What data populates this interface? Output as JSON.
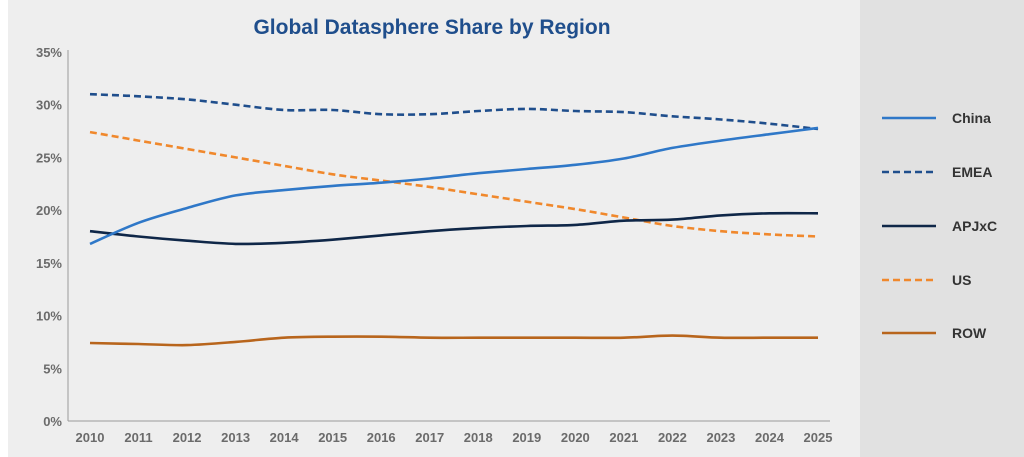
{
  "chart_data": {
    "type": "line",
    "title": "Global Datasphere Share by Region",
    "xlabel": "",
    "ylabel": "",
    "x": [
      "2010",
      "2011",
      "2012",
      "2013",
      "2014",
      "2015",
      "2016",
      "2017",
      "2018",
      "2019",
      "2020",
      "2021",
      "2022",
      "2023",
      "2024",
      "2025"
    ],
    "y_ticks": [
      "0%",
      "5%",
      "10%",
      "15%",
      "20%",
      "25%",
      "30%",
      "35%"
    ],
    "ylim": [
      0,
      35
    ],
    "grid": false,
    "legend_position": "right",
    "series": [
      {
        "name": "China",
        "color": "#2f78c8",
        "dash": "solid",
        "values": [
          16.8,
          18.8,
          20.2,
          21.4,
          21.9,
          22.3,
          22.6,
          23.0,
          23.5,
          23.9,
          24.3,
          24.9,
          25.9,
          26.6,
          27.2,
          27.8
        ]
      },
      {
        "name": "EMEA",
        "color": "#1f4e8c",
        "dash": "dashed",
        "values": [
          31.0,
          30.8,
          30.5,
          30.0,
          29.5,
          29.5,
          29.1,
          29.1,
          29.4,
          29.6,
          29.4,
          29.3,
          28.9,
          28.6,
          28.2,
          27.7
        ]
      },
      {
        "name": "APJxC",
        "color": "#0f2748",
        "dash": "solid",
        "values": [
          18.0,
          17.5,
          17.1,
          16.8,
          16.9,
          17.2,
          17.6,
          18.0,
          18.3,
          18.5,
          18.6,
          19.0,
          19.1,
          19.5,
          19.7,
          19.7
        ]
      },
      {
        "name": "US",
        "color": "#f0882c",
        "dash": "dashed",
        "values": [
          27.4,
          26.6,
          25.8,
          25.0,
          24.2,
          23.4,
          22.8,
          22.2,
          21.5,
          20.8,
          20.1,
          19.3,
          18.5,
          18.0,
          17.7,
          17.5
        ]
      },
      {
        "name": "ROW",
        "color": "#b8651c",
        "dash": "solid",
        "values": [
          7.4,
          7.3,
          7.2,
          7.5,
          7.9,
          8.0,
          8.0,
          7.9,
          7.9,
          7.9,
          7.9,
          7.9,
          8.1,
          7.9,
          7.9,
          7.9
        ]
      }
    ]
  }
}
